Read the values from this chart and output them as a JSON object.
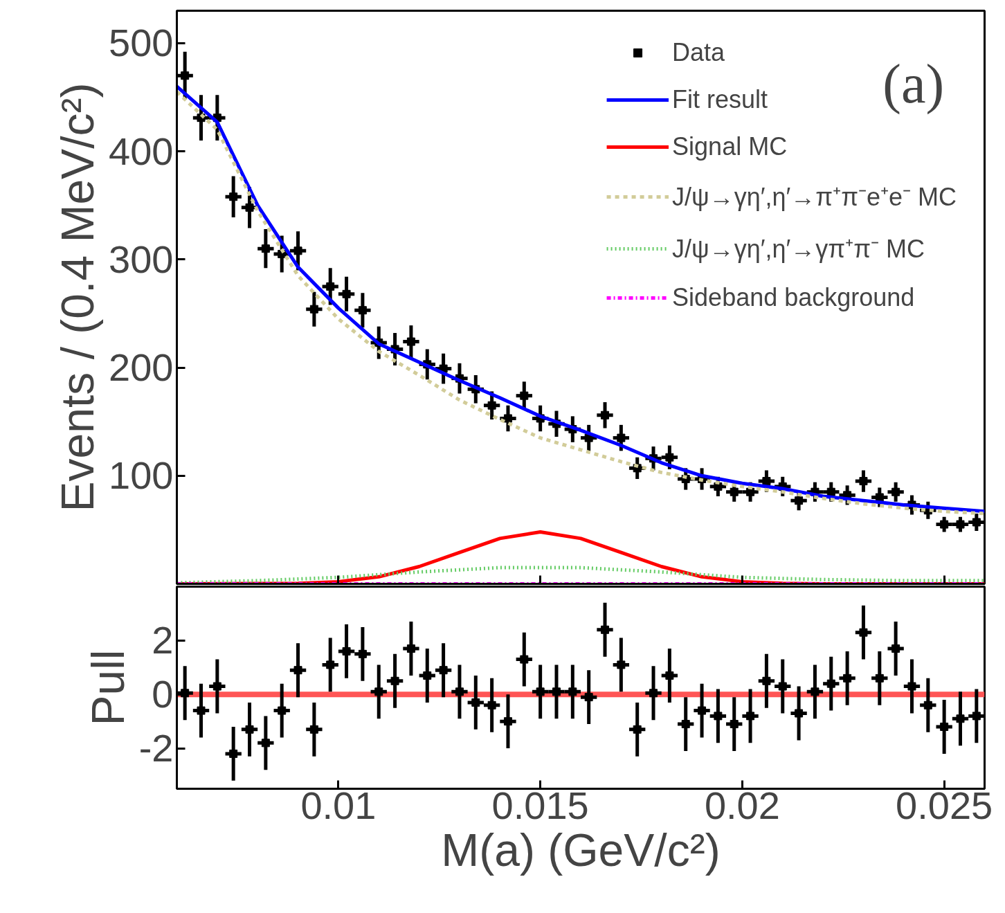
{
  "chart_data": [
    {
      "type": "line",
      "ylabel": "Events / (0.4 MeV/c²)",
      "xlim": [
        0.006,
        0.026
      ],
      "ylim": [
        0,
        530
      ],
      "xticks": [
        0.01,
        0.015,
        0.02,
        0.025
      ],
      "yticks": [
        100,
        200,
        300,
        400,
        500
      ],
      "tick_labels": "y",
      "legend": "top right",
      "annotations": [
        "(a)"
      ],
      "series": [
        {
          "name": "Data",
          "type": "scatter",
          "marker": "square",
          "color": "#000000",
          "x": [
            0.0062,
            0.0066,
            0.007,
            0.0074,
            0.0078,
            0.0082,
            0.0086,
            0.009,
            0.0094,
            0.0098,
            0.0102,
            0.0106,
            0.011,
            0.0114,
            0.0118,
            0.0122,
            0.0126,
            0.013,
            0.0134,
            0.0138,
            0.0142,
            0.0146,
            0.015,
            0.0154,
            0.0158,
            0.0162,
            0.0166,
            0.017,
            0.0174,
            0.0178,
            0.0182,
            0.0186,
            0.019,
            0.0194,
            0.0198,
            0.0202,
            0.0206,
            0.021,
            0.0214,
            0.0218,
            0.0222,
            0.0226,
            0.023,
            0.0234,
            0.0238,
            0.0242,
            0.0246,
            0.025,
            0.0254,
            0.0258
          ],
          "values": [
            470,
            431,
            431,
            358,
            348,
            310,
            305,
            308,
            254,
            275,
            268,
            253,
            223,
            217,
            224,
            203,
            199,
            190,
            180,
            165,
            153,
            174,
            153,
            148,
            143,
            135,
            156,
            135,
            107,
            116,
            117,
            97,
            97,
            90,
            85,
            85,
            95,
            90,
            77,
            85,
            85,
            82,
            95,
            80,
            85,
            73,
            68,
            55,
            55,
            57
          ],
          "errors": [
            22,
            21,
            21,
            19,
            19,
            18,
            17,
            18,
            16,
            17,
            16,
            16,
            15,
            15,
            15,
            14,
            14,
            14,
            13,
            13,
            12,
            13,
            12,
            12,
            12,
            12,
            12,
            12,
            10,
            11,
            11,
            10,
            10,
            9,
            9,
            9,
            10,
            9,
            9,
            9,
            9,
            9,
            10,
            9,
            9,
            9,
            8,
            7,
            7,
            8
          ],
          "xerrors": [
            0.0002,
            0.0002,
            0.0002,
            0.0002,
            0.0002,
            0.0002,
            0.0002,
            0.0002,
            0.0002,
            0.0002,
            0.0002,
            0.0002,
            0.0002,
            0.0002,
            0.0002,
            0.0002,
            0.0002,
            0.0002,
            0.0002,
            0.0002,
            0.0002,
            0.0002,
            0.0002,
            0.0002,
            0.0002,
            0.0002,
            0.0002,
            0.0002,
            0.0002,
            0.0002,
            0.0002,
            0.0002,
            0.0002,
            0.0002,
            0.0002,
            0.0002,
            0.0002,
            0.0002,
            0.0002,
            0.0002,
            0.0002,
            0.0002,
            0.0002,
            0.0002,
            0.0002,
            0.0002,
            0.0002,
            0.0002,
            0.0002,
            0.0002
          ]
        },
        {
          "name": "Fit result",
          "color": "#0000ff",
          "line_style": "solid",
          "x": [
            0.006,
            0.007,
            0.008,
            0.009,
            0.01,
            0.011,
            0.012,
            0.013,
            0.014,
            0.015,
            0.016,
            0.017,
            0.018,
            0.019,
            0.02,
            0.021,
            0.022,
            0.023,
            0.024,
            0.025,
            0.026
          ],
          "values": [
            460,
            427,
            350,
            293,
            255,
            222,
            205,
            188,
            172,
            155,
            142,
            128,
            112,
            100,
            93,
            88,
            81,
            77,
            73,
            70,
            67
          ]
        },
        {
          "name": "Signal MC",
          "color": "#ff0000",
          "line_style": "solid",
          "x": [
            0.006,
            0.009,
            0.01,
            0.011,
            0.012,
            0.013,
            0.014,
            0.015,
            0.016,
            0.017,
            0.018,
            0.019,
            0.02,
            0.021,
            0.022,
            0.026
          ],
          "values": [
            0,
            0.5,
            2,
            6.5,
            16,
            29,
            42,
            48,
            42,
            29,
            16,
            6.5,
            2,
            0.5,
            0,
            0
          ]
        },
        {
          "name": "J/ψ→γη′,η′→π⁺π⁻e⁺e⁻ MC",
          "color": "#d2cc99",
          "line_style": "dashed",
          "x": [
            0.006,
            0.007,
            0.008,
            0.009,
            0.01,
            0.011,
            0.012,
            0.013,
            0.014,
            0.015,
            0.016,
            0.017,
            0.018,
            0.019,
            0.02,
            0.021,
            0.022,
            0.023,
            0.024,
            0.025,
            0.026
          ],
          "values": [
            455,
            420,
            345,
            285,
            245,
            215,
            193,
            170,
            152,
            135,
            124,
            113,
            103,
            96,
            90,
            85,
            79,
            74,
            70,
            67,
            65
          ]
        },
        {
          "name": "J/ψ→γη′,η′→γπ⁺π⁻ MC",
          "color": "#66cc66",
          "line_style": "dotted",
          "x": [
            0.006,
            0.008,
            0.01,
            0.012,
            0.014,
            0.015,
            0.016,
            0.018,
            0.02,
            0.022,
            0.024,
            0.026
          ],
          "values": [
            1,
            3,
            6,
            11,
            15,
            15,
            15,
            11,
            6,
            4,
            3,
            3
          ]
        },
        {
          "name": "Sideband background",
          "color": "#ff00ff",
          "line_style": "dashdot",
          "x": [
            0.006,
            0.026
          ],
          "values": [
            0,
            0
          ]
        }
      ]
    },
    {
      "type": "scatter",
      "xlabel": "M(a) (GeV/c²)",
      "ylabel": "Pull",
      "xlim": [
        0.006,
        0.026
      ],
      "ylim": [
        -3.5,
        4
      ],
      "xticks": [
        0.01,
        0.015,
        0.02,
        0.025
      ],
      "yticks": [
        -2,
        0,
        2
      ],
      "marker": "square",
      "ref_lines": [
        {
          "axis": "y",
          "value": 0,
          "color": "#ff5555"
        }
      ],
      "series": [
        {
          "color": "#000000",
          "x": [
            0.0062,
            0.0066,
            0.007,
            0.0074,
            0.0078,
            0.0082,
            0.0086,
            0.009,
            0.0094,
            0.0098,
            0.0102,
            0.0106,
            0.011,
            0.0114,
            0.0118,
            0.0122,
            0.0126,
            0.013,
            0.0134,
            0.0138,
            0.0142,
            0.0146,
            0.015,
            0.0154,
            0.0158,
            0.0162,
            0.0166,
            0.017,
            0.0174,
            0.0178,
            0.0182,
            0.0186,
            0.019,
            0.0194,
            0.0198,
            0.0202,
            0.0206,
            0.021,
            0.0214,
            0.0218,
            0.0222,
            0.0226,
            0.023,
            0.0234,
            0.0238,
            0.0242,
            0.0246,
            0.025,
            0.0254,
            0.0258
          ],
          "values": [
            0.05,
            -0.6,
            0.3,
            -2.2,
            -1.3,
            -1.8,
            -0.6,
            0.9,
            -1.3,
            1.1,
            1.6,
            1.5,
            0.1,
            0.5,
            1.7,
            0.7,
            0.9,
            0.1,
            -0.3,
            -0.4,
            -1.0,
            1.3,
            0.1,
            0.1,
            0.1,
            -0.1,
            2.4,
            1.1,
            -1.3,
            0.05,
            0.7,
            -1.1,
            -0.6,
            -0.8,
            -1.1,
            -0.8,
            0.5,
            0.3,
            -0.7,
            0.1,
            0.4,
            0.6,
            2.3,
            0.6,
            1.7,
            0.3,
            -0.4,
            -1.2,
            -0.9,
            -0.8
          ],
          "errors": [
            1,
            1,
            1,
            1,
            1,
            1,
            1,
            1,
            1,
            1,
            1,
            1,
            1,
            1,
            1,
            1,
            1,
            1,
            1,
            1,
            1,
            1,
            1,
            1,
            1,
            1,
            1,
            1,
            1,
            1,
            1,
            1,
            1,
            1,
            1,
            1,
            1,
            1,
            1,
            1,
            1,
            1,
            1,
            1,
            1,
            1,
            1,
            1,
            1,
            1
          ],
          "xerrors": [
            0.0002,
            0.0002,
            0.0002,
            0.0002,
            0.0002,
            0.0002,
            0.0002,
            0.0002,
            0.0002,
            0.0002,
            0.0002,
            0.0002,
            0.0002,
            0.0002,
            0.0002,
            0.0002,
            0.0002,
            0.0002,
            0.0002,
            0.0002,
            0.0002,
            0.0002,
            0.0002,
            0.0002,
            0.0002,
            0.0002,
            0.0002,
            0.0002,
            0.0002,
            0.0002,
            0.0002,
            0.0002,
            0.0002,
            0.0002,
            0.0002,
            0.0002,
            0.0002,
            0.0002,
            0.0002,
            0.0002,
            0.0002,
            0.0002,
            0.0002,
            0.0002,
            0.0002,
            0.0002,
            0.0002,
            0.0002,
            0.0002,
            0.0002
          ]
        }
      ]
    }
  ]
}
